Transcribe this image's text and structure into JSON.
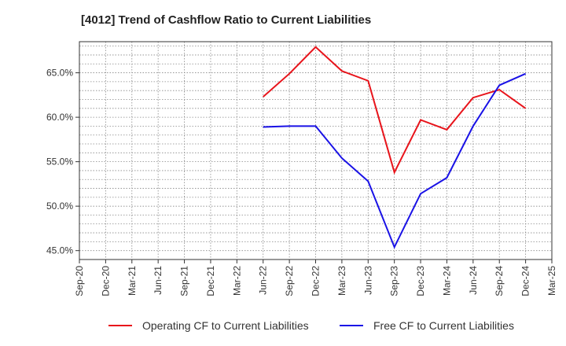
{
  "chart_data": {
    "type": "line",
    "title": "[4012]  Trend of Cashflow Ratio to Current Liabilities",
    "xlabel": "",
    "ylabel": "",
    "x_ticks": [
      "Sep-20",
      "Dec-20",
      "Mar-21",
      "Jun-21",
      "Sep-21",
      "Dec-21",
      "Mar-22",
      "Jun-22",
      "Sep-22",
      "Dec-22",
      "Mar-23",
      "Jun-23",
      "Sep-23",
      "Dec-23",
      "Mar-24",
      "Jun-24",
      "Sep-24",
      "Dec-24",
      "Mar-25"
    ],
    "y_ticks": [
      "45.0%",
      "50.0%",
      "55.0%",
      "60.0%",
      "65.0%"
    ],
    "y_tick_values": [
      45,
      50,
      55,
      60,
      65
    ],
    "ylim": [
      44,
      68.5
    ],
    "grid": true,
    "legend_position": "bottom",
    "series": [
      {
        "name": "Operating CF to Current Liabilities",
        "color": "#e8141b",
        "x": [
          "Jun-22",
          "Sep-22",
          "Dec-22",
          "Mar-23",
          "Jun-23",
          "Sep-23",
          "Dec-23",
          "Mar-24",
          "Jun-24",
          "Sep-24",
          "Dec-24"
        ],
        "values": [
          62.3,
          64.9,
          67.9,
          65.2,
          64.1,
          53.8,
          59.7,
          58.6,
          62.2,
          63.1,
          61.0
        ]
      },
      {
        "name": "Free CF to Current Liabilities",
        "color": "#1a12e6",
        "x": [
          "Jun-22",
          "Sep-22",
          "Dec-22",
          "Mar-23",
          "Jun-23",
          "Sep-23",
          "Dec-23",
          "Mar-24",
          "Jun-24",
          "Sep-24",
          "Dec-24"
        ],
        "values": [
          58.9,
          59.0,
          59.0,
          55.4,
          52.8,
          45.4,
          51.4,
          53.2,
          59.0,
          63.6,
          64.9
        ]
      }
    ]
  }
}
